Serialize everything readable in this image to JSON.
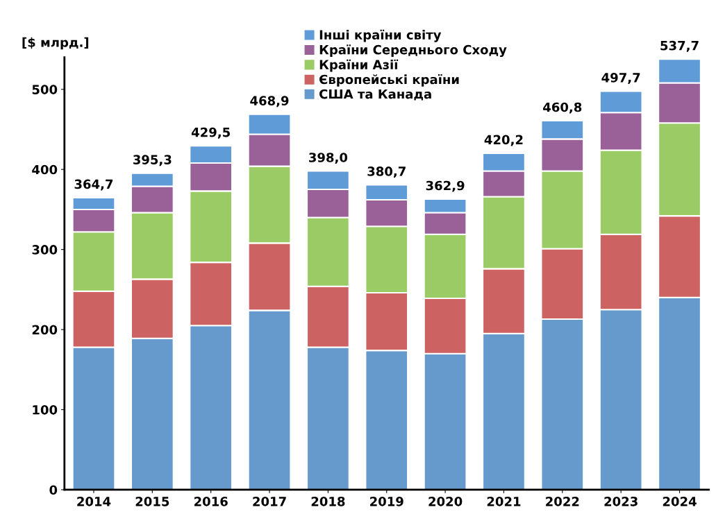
{
  "chart_data": {
    "type": "bar",
    "stacked": true,
    "ylabel": "[$ млрд.]",
    "categories": [
      "2014",
      "2015",
      "2016",
      "2017",
      "2018",
      "2019",
      "2020",
      "2021",
      "2022",
      "2023",
      "2024"
    ],
    "series": [
      {
        "name": "США та Канада",
        "color": "#6699cc",
        "values": [
          178,
          189,
          205,
          224,
          178,
          174,
          170,
          195,
          213,
          225,
          240
        ]
      },
      {
        "name": "Європейські країни",
        "color": "#cc6262",
        "values": [
          70,
          74,
          79,
          84,
          76,
          72,
          69,
          81,
          88,
          94,
          102
        ]
      },
      {
        "name": "Країни Азії",
        "color": "#9bcb64",
        "values": [
          74,
          83,
          89,
          96,
          86,
          83,
          80,
          90,
          97,
          105,
          116
        ]
      },
      {
        "name": "Країни Середнього Сходу",
        "color": "#9a6199",
        "values": [
          28,
          33,
          35,
          40,
          35,
          33,
          27,
          32,
          40,
          47,
          50
        ]
      },
      {
        "name": "Інші країни світу",
        "color": "#5f9bd6",
        "values": [
          14.7,
          16.3,
          21.5,
          24.9,
          23,
          18.7,
          16.9,
          22.2,
          22.8,
          26.7,
          29.7
        ]
      }
    ],
    "totals": [
      "364,7",
      "395,3",
      "429,5",
      "468,9",
      "398,0",
      "380,7",
      "362,9",
      "420,2",
      "460,8",
      "497,7",
      "537,7"
    ],
    "ylim": [
      0,
      540
    ],
    "yticks": [
      0,
      100,
      200,
      300,
      400,
      500
    ],
    "grid": false,
    "legend": "top"
  }
}
